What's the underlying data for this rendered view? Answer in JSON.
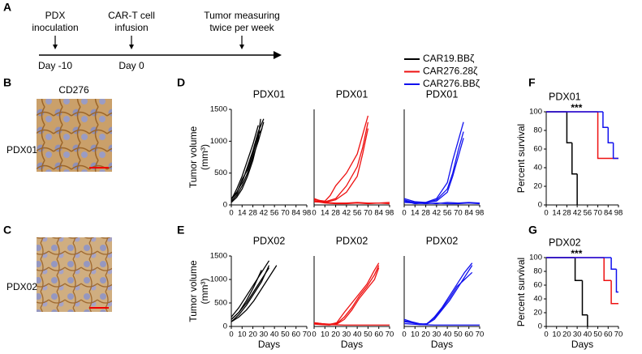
{
  "panel_labels": [
    "A",
    "B",
    "C",
    "D",
    "E",
    "F",
    "G"
  ],
  "timeline": {
    "events": [
      {
        "label": [
          "PDX",
          "inoculation"
        ],
        "day": "Day -10"
      },
      {
        "label": [
          "CAR-T cell",
          "infusion"
        ],
        "day": "Day 0"
      },
      {
        "label": [
          "Tumor measuring",
          "twice per week"
        ]
      }
    ]
  },
  "legend": [
    {
      "name": "CAR19.BBζ",
      "color": "#000000"
    },
    {
      "name": "CAR276.28ζ",
      "color": "#ee1111"
    },
    {
      "name": "CAR276.BBζ",
      "color": "#1111ee"
    }
  ],
  "images": {
    "stain": "CD276",
    "rows": [
      "PDX01",
      "PDX02"
    ]
  },
  "chart_data": [
    {
      "type": "line",
      "title": "PDX01",
      "ylabel": [
        "Tumor volume",
        "(mm³)"
      ],
      "color": "#000000",
      "xlim": [
        0,
        98
      ],
      "xticks": [
        0,
        14,
        28,
        42,
        56,
        70,
        84,
        98
      ],
      "ylim": [
        0,
        1500
      ],
      "yticks": [
        0,
        500,
        1000,
        1500
      ],
      "series": [
        {
          "x": [
            0,
            7,
            14,
            21,
            28,
            35,
            42
          ],
          "values": [
            100,
            200,
            350,
            600,
            850,
            1150,
            1350
          ]
        },
        {
          "x": [
            0,
            7,
            14,
            21,
            28,
            35,
            42
          ],
          "values": [
            60,
            150,
            300,
            500,
            750,
            1000,
            1300
          ]
        },
        {
          "x": [
            0,
            7,
            14,
            21,
            28,
            35
          ],
          "values": [
            80,
            250,
            450,
            700,
            950,
            1250
          ]
        },
        {
          "x": [
            0,
            7,
            14,
            21,
            28,
            35,
            38
          ],
          "values": [
            40,
            120,
            250,
            450,
            700,
            1050,
            1350
          ]
        },
        {
          "x": [
            0,
            7,
            14,
            21,
            28,
            35,
            40
          ],
          "values": [
            90,
            180,
            400,
            550,
            800,
            1100,
            1200
          ]
        }
      ]
    },
    {
      "type": "line",
      "title": "PDX01",
      "color": "#ee1111",
      "xlim": [
        0,
        98
      ],
      "xticks": [
        0,
        14,
        28,
        42,
        56,
        70,
        84,
        98
      ],
      "ylim": [
        0,
        1500
      ],
      "series": [
        {
          "x": [
            0,
            14,
            21,
            28,
            42,
            56,
            63,
            70
          ],
          "values": [
            80,
            60,
            150,
            300,
            500,
            800,
            1100,
            1400
          ]
        },
        {
          "x": [
            0,
            14,
            28,
            42,
            56,
            63,
            70
          ],
          "values": [
            60,
            50,
            100,
            300,
            600,
            900,
            1300
          ]
        },
        {
          "x": [
            0,
            14,
            28,
            42,
            56,
            63,
            70
          ],
          "values": [
            50,
            40,
            80,
            200,
            450,
            800,
            1200
          ]
        },
        {
          "x": [
            0,
            14,
            28,
            42,
            56,
            70,
            84,
            98
          ],
          "values": [
            100,
            40,
            30,
            30,
            40,
            30,
            30,
            40
          ]
        },
        {
          "x": [
            0,
            14,
            28,
            42,
            56,
            70,
            84,
            98
          ],
          "values": [
            60,
            30,
            20,
            20,
            30,
            20,
            30,
            20
          ]
        }
      ]
    },
    {
      "type": "line",
      "title": "PDX01",
      "color": "#1111ee",
      "xlim": [
        0,
        98
      ],
      "xticks": [
        0,
        14,
        28,
        42,
        56,
        70,
        84,
        98
      ],
      "ylim": [
        0,
        1500
      ],
      "series": [
        {
          "x": [
            0,
            14,
            28,
            42,
            56,
            63,
            70,
            77
          ],
          "values": [
            80,
            30,
            40,
            100,
            350,
            700,
            1000,
            1300
          ]
        },
        {
          "x": [
            0,
            14,
            28,
            42,
            56,
            63,
            70,
            77
          ],
          "values": [
            60,
            40,
            30,
            80,
            250,
            500,
            850,
            1150
          ]
        },
        {
          "x": [
            0,
            14,
            28,
            42,
            56,
            63,
            70,
            77
          ],
          "values": [
            100,
            50,
            40,
            60,
            200,
            450,
            750,
            1050
          ]
        },
        {
          "x": [
            0,
            14,
            28,
            42,
            56,
            70,
            84,
            98
          ],
          "values": [
            60,
            20,
            30,
            20,
            40,
            30,
            40,
            30
          ]
        },
        {
          "x": [
            0,
            14,
            28,
            42,
            56,
            70,
            84,
            98
          ],
          "values": [
            40,
            30,
            20,
            30,
            20,
            20,
            30,
            20
          ]
        }
      ]
    },
    {
      "type": "line",
      "title": "PDX02",
      "ylabel": [
        "Tumor volume",
        "(mm³)"
      ],
      "xlabel": "Days",
      "color": "#000000",
      "xlim": [
        0,
        70
      ],
      "xticks": [
        0,
        10,
        20,
        30,
        40,
        50,
        60,
        70
      ],
      "ylim": [
        0,
        1500
      ],
      "yticks": [
        0,
        500,
        1000,
        1500
      ],
      "series": [
        {
          "x": [
            0,
            7,
            14,
            21,
            28,
            35
          ],
          "values": [
            150,
            300,
            500,
            750,
            1000,
            1250
          ]
        },
        {
          "x": [
            0,
            7,
            14,
            21,
            28,
            35
          ],
          "values": [
            100,
            250,
            450,
            700,
            950,
            1300
          ]
        },
        {
          "x": [
            0,
            7,
            14,
            21,
            28,
            35
          ],
          "values": [
            200,
            400,
            650,
            900,
            1150,
            1400
          ]
        },
        {
          "x": [
            0,
            7,
            14,
            21,
            28
          ],
          "values": [
            150,
            300,
            550,
            850,
            1200
          ]
        },
        {
          "x": [
            0,
            7,
            14,
            21,
            28,
            35,
            42
          ],
          "values": [
            100,
            200,
            350,
            550,
            800,
            1050,
            1300
          ]
        }
      ]
    },
    {
      "type": "line",
      "title": "PDX02",
      "xlabel": "Days",
      "color": "#ee1111",
      "xlim": [
        0,
        70
      ],
      "xticks": [
        0,
        10,
        20,
        30,
        40,
        50,
        60,
        70
      ],
      "ylim": [
        0,
        1500
      ],
      "series": [
        {
          "x": [
            0,
            7,
            14,
            21,
            28,
            35,
            42,
            49,
            56,
            60
          ],
          "values": [
            60,
            50,
            40,
            80,
            300,
            500,
            700,
            900,
            1200,
            1350
          ]
        },
        {
          "x": [
            0,
            7,
            14,
            21,
            28,
            35,
            42,
            49,
            56,
            60
          ],
          "values": [
            80,
            60,
            50,
            60,
            200,
            400,
            650,
            850,
            1100,
            1300
          ]
        },
        {
          "x": [
            0,
            7,
            14,
            21,
            28,
            35,
            42,
            49,
            56,
            60
          ],
          "values": [
            50,
            40,
            30,
            50,
            150,
            350,
            600,
            800,
            1000,
            1250
          ]
        },
        {
          "x": [
            0,
            14,
            28,
            42,
            56,
            70
          ],
          "values": [
            80,
            40,
            30,
            30,
            30,
            30
          ]
        }
      ]
    },
    {
      "type": "line",
      "title": "PDX02",
      "xlabel": "Days",
      "color": "#1111ee",
      "xlim": [
        0,
        70
      ],
      "xticks": [
        0,
        10,
        20,
        30,
        40,
        50,
        60,
        70
      ],
      "ylim": [
        0,
        1500
      ],
      "series": [
        {
          "x": [
            0,
            7,
            14,
            21,
            28,
            35,
            42,
            49,
            56,
            63
          ],
          "values": [
            150,
            100,
            60,
            50,
            200,
            400,
            650,
            900,
            1150,
            1350
          ]
        },
        {
          "x": [
            0,
            7,
            14,
            21,
            28,
            35,
            42,
            49,
            56,
            63
          ],
          "values": [
            100,
            80,
            50,
            50,
            150,
            350,
            550,
            800,
            1050,
            1300
          ]
        },
        {
          "x": [
            0,
            7,
            14,
            21,
            28,
            35,
            42,
            49,
            56,
            63
          ],
          "values": [
            120,
            90,
            40,
            60,
            180,
            380,
            600,
            850,
            1000,
            1150
          ]
        },
        {
          "x": [
            0,
            14,
            28,
            42,
            56,
            70
          ],
          "values": [
            60,
            40,
            30,
            30,
            30,
            30
          ]
        }
      ]
    },
    {
      "type": "survival",
      "title": "PDX01",
      "ylabel": "Percent survival",
      "annotation": "***",
      "xlim": [
        0,
        98
      ],
      "xticks": [
        0,
        14,
        28,
        42,
        56,
        70,
        84,
        98
      ],
      "ylim": [
        0,
        100
      ],
      "yticks": [
        0,
        20,
        40,
        60,
        80,
        100
      ],
      "series": [
        {
          "color": "#000000",
          "x": [
            0,
            28,
            35,
            42
          ],
          "values": [
            100,
            66.7,
            33.3,
            0
          ]
        },
        {
          "color": "#ee1111",
          "x": [
            0,
            70,
            98
          ],
          "values": [
            100,
            50,
            50
          ]
        },
        {
          "color": "#1111ee",
          "x": [
            0,
            77,
            84,
            91,
            98
          ],
          "values": [
            100,
            83.3,
            66.7,
            50,
            50
          ]
        }
      ]
    },
    {
      "type": "survival",
      "title": "PDX02",
      "ylabel": "Percent survival",
      "xlabel": "Days",
      "annotation": "***",
      "xlim": [
        0,
        70
      ],
      "xticks": [
        0,
        10,
        20,
        30,
        40,
        50,
        60,
        70
      ],
      "ylim": [
        0,
        100
      ],
      "yticks": [
        0,
        20,
        40,
        60,
        80,
        100
      ],
      "series": [
        {
          "color": "#000000",
          "x": [
            0,
            28,
            35,
            40
          ],
          "values": [
            100,
            66.7,
            16.7,
            0
          ]
        },
        {
          "color": "#ee1111",
          "x": [
            0,
            56,
            63,
            70
          ],
          "values": [
            100,
            66.7,
            33.3,
            33.3
          ]
        },
        {
          "color": "#1111ee",
          "x": [
            0,
            63,
            68,
            70
          ],
          "values": [
            100,
            83.3,
            50,
            50
          ]
        }
      ]
    }
  ]
}
